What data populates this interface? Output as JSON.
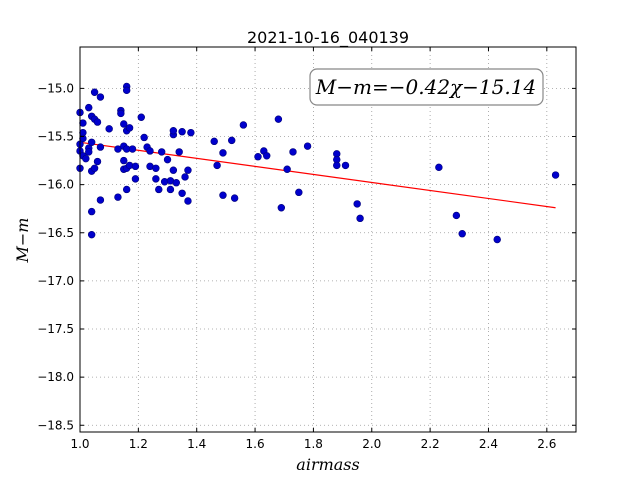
{
  "chart_data": {
    "type": "scatter",
    "title": "2021-10-16_040139",
    "xlabel": "airmass",
    "ylabel": "M−m",
    "annotation": "M−m=−0.42χ−15.14",
    "xlim": [
      1.0,
      2.7
    ],
    "ylim": [
      -18.57,
      -14.57
    ],
    "y_inverted": true,
    "grid": true,
    "x_ticks": [
      1.0,
      1.2,
      1.4,
      1.6,
      1.8,
      2.0,
      2.2,
      2.4,
      2.6
    ],
    "x_tick_labels": [
      "1.0",
      "1.2",
      "1.4",
      "1.6",
      "1.8",
      "2.0",
      "2.2",
      "2.4",
      "2.6"
    ],
    "y_ticks": [
      -15.0,
      -15.5,
      -16.0,
      -16.5,
      -17.0,
      -17.5,
      -18.0,
      -18.5
    ],
    "y_tick_labels": [
      "−15.0",
      "−15.5",
      "−16.0",
      "−16.5",
      "−17.0",
      "−17.5",
      "−18.0",
      "−18.5"
    ],
    "colors": {
      "points": "#0000cc",
      "points_edge": "#00007a",
      "fit_line": "#ff0000",
      "grid": "#9a9a9a"
    },
    "series": [
      {
        "type": "scatter",
        "points": [
          [
            1.0,
            -15.25
          ],
          [
            1.01,
            -15.36
          ],
          [
            1.01,
            -15.46
          ],
          [
            1.01,
            -15.52
          ],
          [
            1.0,
            -15.58
          ],
          [
            1.0,
            -15.65
          ],
          [
            1.01,
            -15.7
          ],
          [
            1.02,
            -15.73
          ],
          [
            1.0,
            -15.83
          ],
          [
            1.03,
            -15.2
          ],
          [
            1.03,
            -15.62
          ],
          [
            1.03,
            -15.66
          ],
          [
            1.04,
            -15.56
          ],
          [
            1.04,
            -15.86
          ],
          [
            1.05,
            -15.83
          ],
          [
            1.04,
            -16.28
          ],
          [
            1.04,
            -16.52
          ],
          [
            1.04,
            -15.29
          ],
          [
            1.05,
            -15.04
          ],
          [
            1.05,
            -15.32
          ],
          [
            1.06,
            -15.35
          ],
          [
            1.06,
            -15.76
          ],
          [
            1.07,
            -15.09
          ],
          [
            1.07,
            -15.61
          ],
          [
            1.07,
            -16.16
          ],
          [
            1.1,
            -15.42
          ],
          [
            1.13,
            -15.63
          ],
          [
            1.13,
            -16.13
          ],
          [
            1.14,
            -15.23
          ],
          [
            1.14,
            -15.26
          ],
          [
            1.15,
            -15.37
          ],
          [
            1.15,
            -15.75
          ],
          [
            1.15,
            -15.6
          ],
          [
            1.15,
            -15.84
          ],
          [
            1.16,
            -15.83
          ],
          [
            1.16,
            -15.63
          ],
          [
            1.16,
            -14.98
          ],
          [
            1.16,
            -15.02
          ],
          [
            1.16,
            -15.44
          ],
          [
            1.17,
            -15.41
          ],
          [
            1.16,
            -16.05
          ],
          [
            1.17,
            -15.8
          ],
          [
            1.18,
            -15.63
          ],
          [
            1.19,
            -15.81
          ],
          [
            1.19,
            -15.94
          ],
          [
            1.21,
            -15.3
          ],
          [
            1.22,
            -15.51
          ],
          [
            1.23,
            -15.61
          ],
          [
            1.24,
            -15.65
          ],
          [
            1.24,
            -15.81
          ],
          [
            1.26,
            -15.83
          ],
          [
            1.26,
            -15.94
          ],
          [
            1.27,
            -16.05
          ],
          [
            1.28,
            -15.66
          ],
          [
            1.29,
            -15.97
          ],
          [
            1.3,
            -15.74
          ],
          [
            1.31,
            -15.96
          ],
          [
            1.31,
            -16.05
          ],
          [
            1.32,
            -15.48
          ],
          [
            1.32,
            -15.44
          ],
          [
            1.32,
            -15.85
          ],
          [
            1.33,
            -15.98
          ],
          [
            1.34,
            -15.66
          ],
          [
            1.35,
            -15.45
          ],
          [
            1.35,
            -16.09
          ],
          [
            1.36,
            -15.92
          ],
          [
            1.37,
            -16.17
          ],
          [
            1.37,
            -15.85
          ],
          [
            1.38,
            -15.46
          ],
          [
            1.46,
            -15.55
          ],
          [
            1.47,
            -15.8
          ],
          [
            1.49,
            -15.67
          ],
          [
            1.49,
            -16.11
          ],
          [
            1.52,
            -15.54
          ],
          [
            1.53,
            -16.14
          ],
          [
            1.56,
            -15.38
          ],
          [
            1.61,
            -15.71
          ],
          [
            1.63,
            -15.65
          ],
          [
            1.64,
            -15.7
          ],
          [
            1.68,
            -15.32
          ],
          [
            1.69,
            -16.24
          ],
          [
            1.71,
            -15.84
          ],
          [
            1.73,
            -15.66
          ],
          [
            1.75,
            -16.08
          ],
          [
            1.78,
            -15.6
          ],
          [
            1.88,
            -15.68
          ],
          [
            1.88,
            -15.74
          ],
          [
            1.88,
            -15.8
          ],
          [
            1.91,
            -15.8
          ],
          [
            1.95,
            -16.2
          ],
          [
            1.96,
            -16.35
          ],
          [
            2.23,
            -15.82
          ],
          [
            2.29,
            -16.32
          ],
          [
            2.31,
            -16.51
          ],
          [
            2.43,
            -16.57
          ],
          [
            2.63,
            -15.9
          ]
        ]
      },
      {
        "type": "line",
        "points": [
          [
            1.0,
            -15.56
          ],
          [
            2.63,
            -16.24
          ]
        ]
      }
    ]
  }
}
